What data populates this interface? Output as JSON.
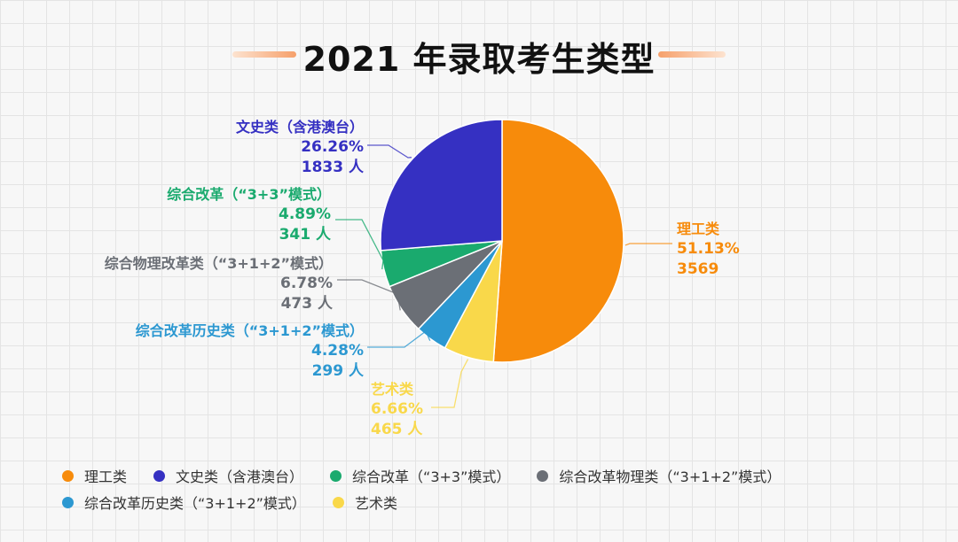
{
  "title": "2021 年录取考生类型",
  "chart_data": {
    "type": "pie",
    "title": "2021 年录取考生类型",
    "slices": [
      {
        "name": "理工类",
        "legend": "理工类",
        "value": 3569,
        "percent": "51.13%",
        "count_text": "3569",
        "color": "#f78b0b"
      },
      {
        "name": "艺术类",
        "legend": "艺术类",
        "value": 465,
        "percent": "6.66%",
        "count_text": "465 人",
        "color": "#f9d84a"
      },
      {
        "name": "综合改革历史类（“3+1+2”模式）",
        "legend": "综合改革历史类（“3+1+2”模式）",
        "value": 299,
        "percent": "4.28%",
        "count_text": "299 人",
        "color": "#2c98d1"
      },
      {
        "name": "综合物理改革类（“3+1+2”模式）",
        "legend": "综合改革物理类（“3+1+2”模式）",
        "value": 473,
        "percent": "6.78%",
        "count_text": "473 人",
        "color": "#6b6f76"
      },
      {
        "name": "综合改革（“3+3”模式）",
        "legend": "综合改革（“3+3”模式）",
        "value": 341,
        "percent": "4.89%",
        "count_text": "341 人",
        "color": "#1aaa6e"
      },
      {
        "name": "文史类（含港澳台）",
        "legend": "文史类（含港澳台）",
        "value": 1833,
        "percent": "26.26%",
        "count_text": "1833 人",
        "color": "#3530c2"
      }
    ],
    "legend_position": "bottom-left",
    "grid": false
  }
}
